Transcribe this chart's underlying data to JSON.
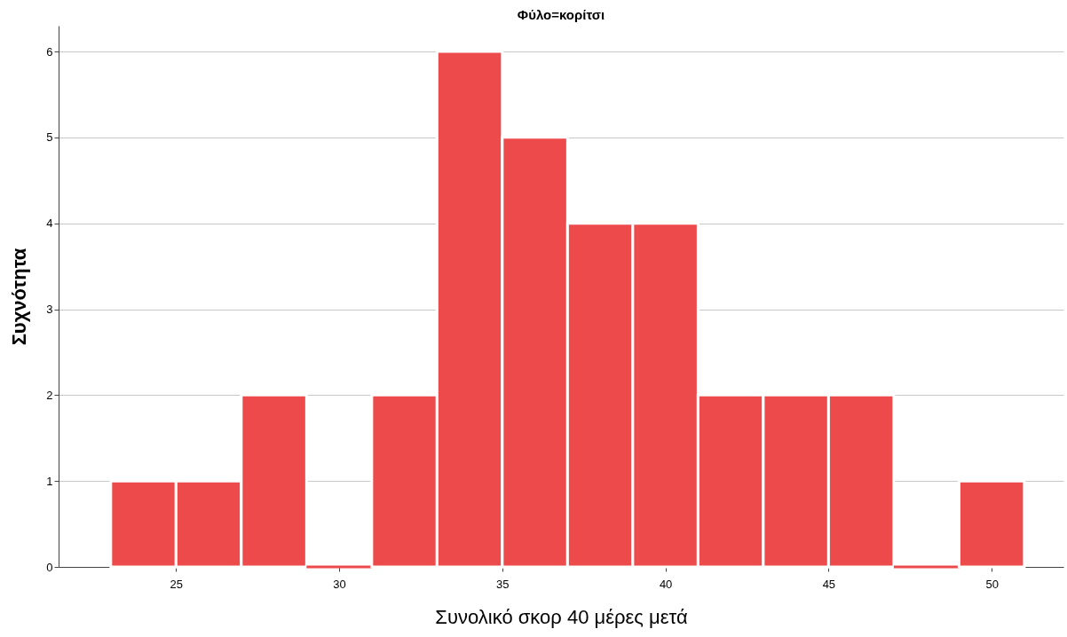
{
  "chart_data": {
    "type": "histogram",
    "title": "Φύλο=κορίτσι",
    "xlabel": "Συνολικό σκορ 40 μέρες μετά",
    "ylabel": "Συχνότητα",
    "bins": [
      23,
      25,
      27,
      29,
      31,
      33,
      35,
      37,
      39,
      41,
      43,
      45,
      47,
      49,
      51
    ],
    "values": [
      1,
      1,
      2,
      0,
      2,
      6,
      5,
      4,
      4,
      2,
      2,
      2,
      0,
      1
    ],
    "color": "#ec4a4b",
    "xlim": [
      21.4,
      52.2
    ],
    "xticks": [
      25,
      30,
      35,
      40,
      45,
      50
    ],
    "ylim": [
      0,
      6.3
    ],
    "yticks": [
      0,
      1,
      2,
      3,
      4,
      5,
      6
    ],
    "grid": "y",
    "legend": false
  }
}
